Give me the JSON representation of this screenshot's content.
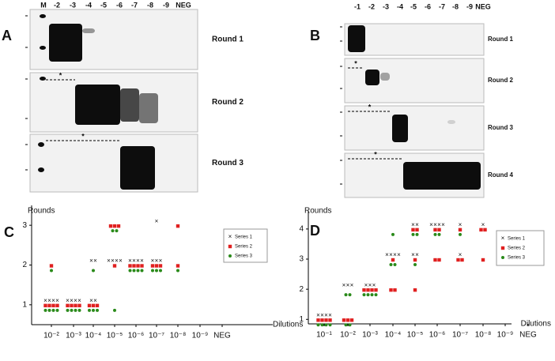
{
  "gels": [
    {
      "label": "A",
      "lanes": [
        "M",
        "-2",
        "-3",
        "-4",
        "-5",
        "-6",
        "-7",
        "-8",
        "-9",
        "NEG"
      ],
      "rounds": [
        "Round 1",
        "Round 2",
        "Round 3"
      ],
      "star": "*"
    },
    {
      "label": "B",
      "lanes": [
        "-1",
        "-2",
        "-3",
        "-4",
        "-5",
        "-6",
        "-7",
        "-8",
        "-9",
        "NEG"
      ],
      "rounds": [
        "Round 1",
        "Round 2",
        "Round 3",
        "Round 4"
      ],
      "star": "*"
    }
  ],
  "chart_data": [
    {
      "type": "scatter",
      "label": "C",
      "ylabel": "Rounds",
      "xlabel": "Dilutions",
      "categories": [
        "10⁻²",
        "10⁻³",
        "10⁻⁴",
        "10⁻⁵",
        "10⁻⁶",
        "10⁻⁷",
        "10⁻⁸",
        "10⁻⁹",
        "NEG"
      ],
      "ylim": [
        0.5,
        3.5
      ],
      "yticks": [
        1,
        2,
        3
      ],
      "series": [
        {
          "name": "Series 1",
          "marker": "cross",
          "color": "#000000",
          "x": [
            "10⁻²",
            "10⁻³",
            "10⁻⁴",
            "10⁻⁴",
            "10⁻⁵",
            "10⁻⁶",
            "10⁻⁷",
            "10⁻⁷"
          ],
          "values": [
            1,
            1,
            1,
            2,
            2,
            2,
            2,
            3
          ],
          "counts": [
            4,
            4,
            2,
            2,
            4,
            4,
            3,
            1
          ]
        },
        {
          "name": "Series 2",
          "marker": "square",
          "color": "#e02020",
          "x": [
            "10⁻²",
            "10⁻²",
            "10⁻³",
            "10⁻⁴",
            "10⁻⁵",
            "10⁻⁵",
            "10⁻⁶",
            "10⁻⁷",
            "10⁻⁸",
            "10⁻⁸"
          ],
          "values": [
            1,
            2,
            1,
            1,
            2,
            3,
            2,
            2,
            2,
            3
          ],
          "counts": [
            4,
            1,
            4,
            3,
            1,
            3,
            4,
            3,
            1,
            1
          ]
        },
        {
          "name": "Series 3",
          "marker": "dot",
          "color": "#2a8a1a",
          "x": [
            "10⁻²",
            "10⁻²",
            "10⁻³",
            "10⁻⁴",
            "10⁻⁴",
            "10⁻⁵",
            "10⁻⁵",
            "10⁻⁶",
            "10⁻⁷",
            "10⁻⁸"
          ],
          "values": [
            1,
            2,
            1,
            1,
            2,
            1,
            3,
            2,
            2,
            2
          ],
          "counts": [
            4,
            1,
            4,
            3,
            1,
            1,
            2,
            4,
            3,
            1
          ]
        }
      ]
    },
    {
      "type": "scatter",
      "label": "D",
      "ylabel": "Rounds",
      "xlabel": "Dilutions",
      "categories": [
        "10⁻¹",
        "10⁻²",
        "10⁻³",
        "10⁻⁴",
        "10⁻⁵",
        "10⁻⁶",
        "10⁻⁷",
        "10⁻⁸",
        "10⁻⁹",
        "NEG"
      ],
      "ylim": [
        0.85,
        4.6
      ],
      "yticks": [
        1,
        2,
        3,
        4
      ],
      "series": [
        {
          "name": "Series 1",
          "marker": "cross",
          "color": "#000000",
          "x": [
            "10⁻¹",
            "10⁻²",
            "10⁻³",
            "10⁻⁴",
            "10⁻⁵",
            "10⁻⁵",
            "10⁻⁶",
            "10⁻⁷",
            "10⁻⁷",
            "10⁻⁸"
          ],
          "values": [
            1,
            2,
            2,
            3,
            3,
            4,
            4,
            3,
            4,
            4
          ],
          "counts": [
            4,
            3,
            3,
            4,
            2,
            2,
            4,
            1,
            1,
            1
          ]
        },
        {
          "name": "Series 2",
          "marker": "square",
          "color": "#e02020",
          "x": [
            "10⁻¹",
            "10⁻²",
            "10⁻³",
            "10⁻⁴",
            "10⁻⁴",
            "10⁻⁵",
            "10⁻⁵",
            "10⁻⁵",
            "10⁻⁶",
            "10⁻⁶",
            "10⁻⁷",
            "10⁻⁷",
            "10⁻⁸",
            "10⁻⁸"
          ],
          "values": [
            1,
            1,
            2,
            2,
            3,
            2,
            3,
            4,
            3,
            4,
            3,
            4,
            3,
            4
          ],
          "counts": [
            4,
            3,
            4,
            2,
            1,
            1,
            1,
            2,
            2,
            2,
            2,
            1,
            1,
            2
          ]
        },
        {
          "name": "Series 3",
          "marker": "dot",
          "color": "#2a8a1a",
          "x": [
            "10⁻¹",
            "10⁻²",
            "10⁻²",
            "10⁻³",
            "10⁻⁴",
            "10⁻⁴",
            "10⁻⁵",
            "10⁻⁵",
            "10⁻⁶",
            "10⁻⁷"
          ],
          "values": [
            1,
            1,
            2,
            2,
            3,
            4,
            3,
            4,
            4,
            4
          ],
          "counts": [
            4,
            2,
            2,
            4,
            2,
            1,
            1,
            2,
            2,
            1
          ]
        }
      ]
    }
  ]
}
